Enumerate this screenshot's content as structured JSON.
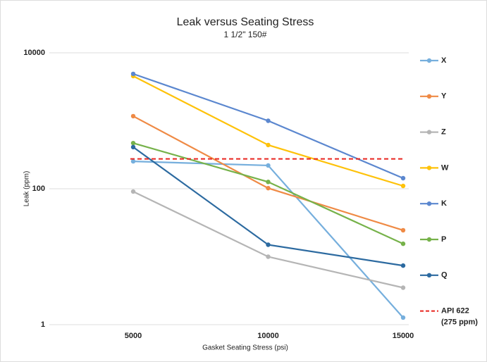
{
  "chart_data": {
    "type": "line",
    "title": "Leak versus Seating Stress",
    "subtitle": "1 1/2\" 150#",
    "x_label": "Gasket Seating Stress (psi)",
    "y_label": "Leak (ppm)",
    "categories": [
      "5000",
      "10000",
      "15000"
    ],
    "log_scale": true,
    "ylim": [
      1,
      10000
    ],
    "yticks": [
      1,
      100,
      10000
    ],
    "grid": true,
    "legend": "right",
    "series": [
      {
        "name": "X",
        "color": "#76afdd",
        "values": [
          253,
          220,
          1.27
        ]
      },
      {
        "name": "Y",
        "color": "#ef8a45",
        "values": [
          1170,
          102,
          24.5
        ]
      },
      {
        "name": "Z",
        "color": "#b5b5b5",
        "values": [
          91,
          10,
          3.5
        ]
      },
      {
        "name": "W",
        "color": "#fec20a",
        "values": [
          4550,
          440,
          110
        ]
      },
      {
        "name": "K",
        "color": "#5b87cf",
        "values": [
          4900,
          1000,
          143
        ]
      },
      {
        "name": "P",
        "color": "#76b24a",
        "values": [
          470,
          126,
          15.5
        ]
      },
      {
        "name": "Q",
        "color": "#2c6aa0",
        "values": [
          410,
          15,
          7.4
        ]
      },
      {
        "name": "API 622",
        "annotation": "(275 ppm)",
        "color": "#e8251f",
        "dashed": true,
        "values": [
          275,
          275,
          275
        ]
      }
    ]
  }
}
